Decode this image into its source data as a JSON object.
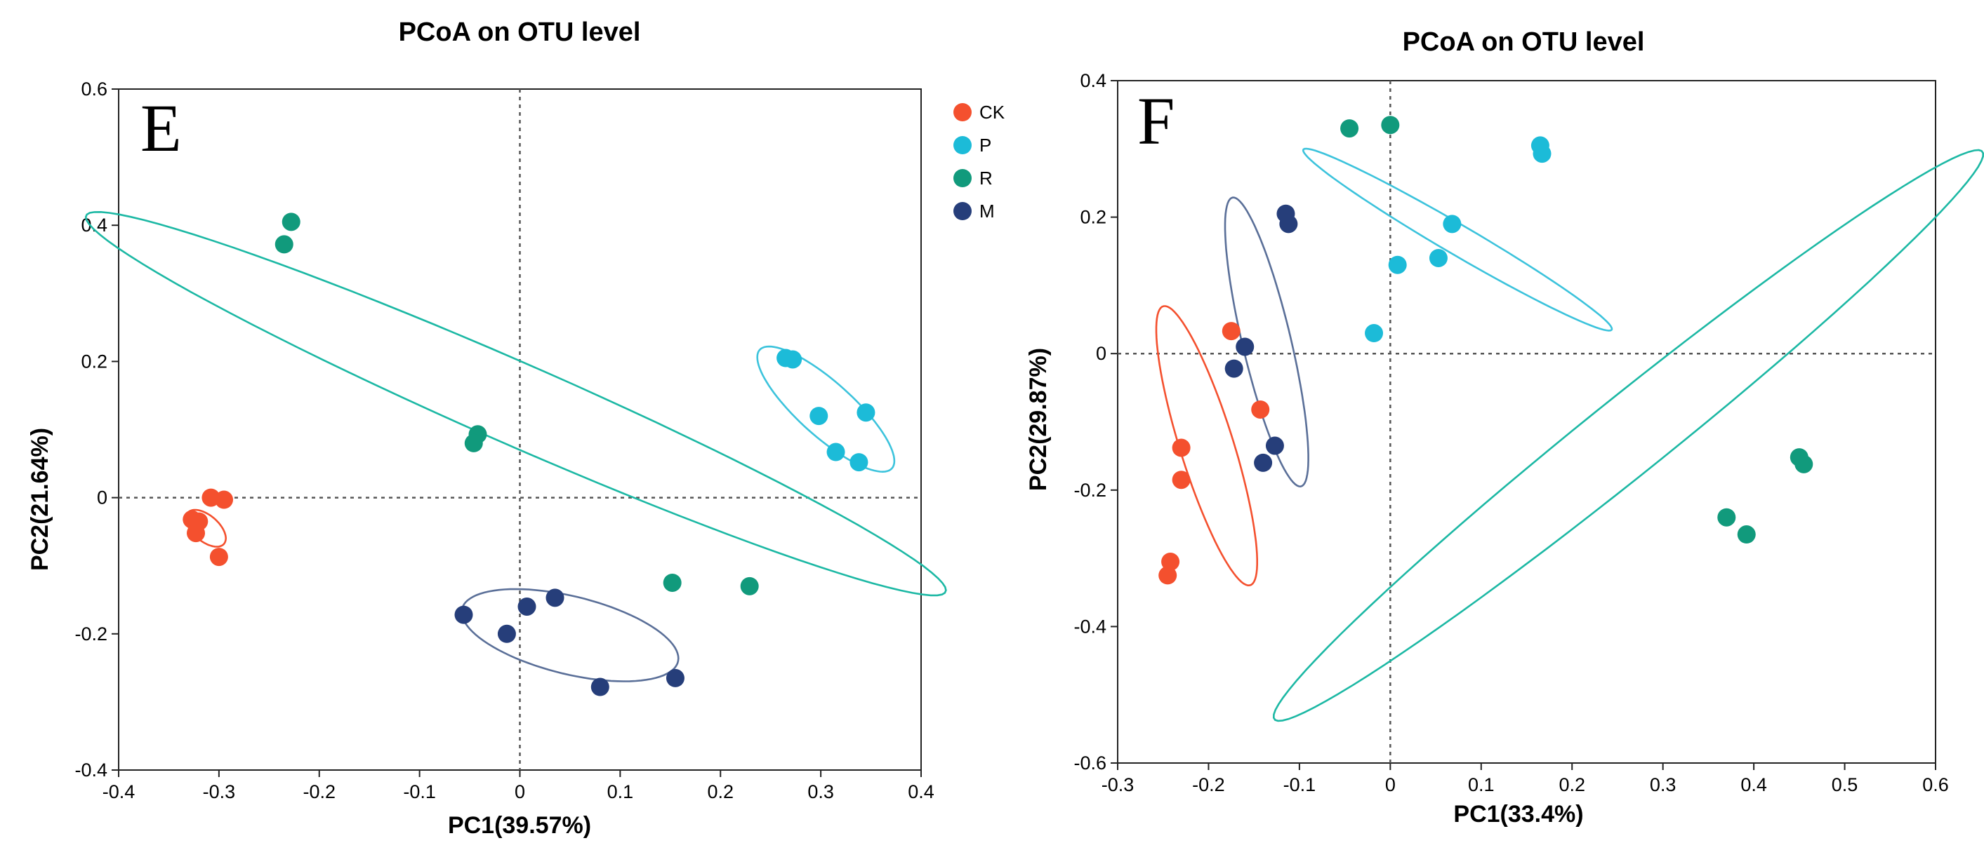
{
  "colors": {
    "CK": "#f4502e",
    "P": "#1cbbd8",
    "R": "#119a7c",
    "M": "#263e7a",
    "ellipse_CK": "#f4502e",
    "ellipse_P": "#3cc3dc",
    "ellipse_R": "#1cb8a4",
    "ellipse_M": "#5a6f98"
  },
  "legend": [
    {
      "group": "CK",
      "label": "CK"
    },
    {
      "group": "P",
      "label": "P"
    },
    {
      "group": "R",
      "label": "R"
    },
    {
      "group": "M",
      "label": "M"
    }
  ],
  "chart_data": [
    {
      "type": "scatter",
      "panel": "E",
      "title": "PCoA on OTU level",
      "xlabel": "PC1(39.57%)",
      "ylabel": "PC2(21.64%)",
      "xlim": [
        -0.4,
        0.4
      ],
      "ylim": [
        -0.4,
        0.6
      ],
      "xticks": [
        -0.4,
        -0.3,
        -0.2,
        -0.1,
        0,
        0.1,
        0.2,
        0.3,
        0.4
      ],
      "yticks": [
        -0.4,
        -0.2,
        0,
        0.2,
        0.4,
        0.6
      ],
      "xtick_labels": [
        "-0.4",
        "-0.3",
        "-0.2",
        "-0.1",
        "0",
        "0.1",
        "0.2",
        "0.3",
        "0.4"
      ],
      "ytick_labels": [
        "-0.4",
        "-0.2",
        "0",
        "0.2",
        "0.4",
        "0.6"
      ],
      "series": [
        {
          "name": "CK",
          "points": [
            [
              -0.308,
              0.0
            ],
            [
              -0.295,
              -0.003
            ],
            [
              -0.327,
              -0.032
            ],
            [
              -0.32,
              -0.035
            ],
            [
              -0.323,
              -0.052
            ],
            [
              -0.3,
              -0.087
            ]
          ]
        },
        {
          "name": "P",
          "points": [
            [
              0.265,
              0.205
            ],
            [
              0.272,
              0.203
            ],
            [
              0.298,
              0.12
            ],
            [
              0.345,
              0.125
            ],
            [
              0.315,
              0.067
            ],
            [
              0.338,
              0.052
            ]
          ]
        },
        {
          "name": "R",
          "points": [
            [
              -0.228,
              0.405
            ],
            [
              -0.235,
              0.372
            ],
            [
              -0.042,
              0.093
            ],
            [
              -0.046,
              0.08
            ],
            [
              0.152,
              -0.125
            ],
            [
              0.229,
              -0.13
            ]
          ]
        },
        {
          "name": "M",
          "points": [
            [
              -0.056,
              -0.172
            ],
            [
              0.035,
              -0.147
            ],
            [
              0.007,
              -0.16
            ],
            [
              -0.013,
              -0.2
            ],
            [
              0.08,
              -0.278
            ],
            [
              0.155,
              -0.265
            ]
          ]
        }
      ],
      "ellipses": [
        {
          "group": "CK",
          "center": [
            -0.313,
            -0.045
          ],
          "a": 0.03,
          "b": 0.015,
          "angle_deg": -60
        },
        {
          "group": "P",
          "center": [
            0.305,
            0.13
          ],
          "a": 0.11,
          "b": 0.032,
          "angle_deg": -55
        },
        {
          "group": "R",
          "center": [
            -0.004,
            0.138
          ],
          "a": 0.51,
          "b": 0.055,
          "angle_deg": -33
        },
        {
          "group": "M",
          "center": [
            0.05,
            -0.202
          ],
          "a": 0.115,
          "b": 0.055,
          "angle_deg": -23
        }
      ]
    },
    {
      "type": "scatter",
      "panel": "F",
      "title": "PCoA on OTU level",
      "xlabel": "PC1(33.4%)",
      "ylabel": "PC2(29.87%)",
      "xlim": [
        -0.3,
        0.6
      ],
      "ylim": [
        -0.6,
        0.4
      ],
      "xticks": [
        -0.3,
        -0.2,
        -0.1,
        0,
        0.1,
        0.2,
        0.3,
        0.4,
        0.5,
        0.6
      ],
      "yticks": [
        -0.6,
        -0.4,
        -0.2,
        0,
        0.2,
        0.4
      ],
      "xtick_labels": [
        "-0.3",
        "-0.2",
        "-0.1",
        "0",
        "0.1",
        "0.2",
        "0.3",
        "0.4",
        "0.5",
        "0.6"
      ],
      "ytick_labels": [
        "-0.6",
        "-0.4",
        "-0.2",
        "0",
        "0.2",
        "0.4"
      ],
      "series": [
        {
          "name": "CK",
          "points": [
            [
              -0.175,
              0.033
            ],
            [
              -0.143,
              -0.082
            ],
            [
              -0.23,
              -0.138
            ],
            [
              -0.23,
              -0.185
            ],
            [
              -0.242,
              -0.305
            ],
            [
              -0.245,
              -0.325
            ]
          ]
        },
        {
          "name": "P",
          "points": [
            [
              -0.018,
              0.03
            ],
            [
              0.008,
              0.13
            ],
            [
              0.053,
              0.14
            ],
            [
              0.068,
              0.19
            ],
            [
              0.165,
              0.305
            ],
            [
              0.167,
              0.293
            ]
          ]
        },
        {
          "name": "R",
          "points": [
            [
              -0.045,
              0.33
            ],
            [
              0.0,
              0.335
            ],
            [
              0.45,
              -0.152
            ],
            [
              0.455,
              -0.162
            ],
            [
              0.37,
              -0.24
            ],
            [
              0.392,
              -0.265
            ]
          ]
        },
        {
          "name": "M",
          "points": [
            [
              -0.115,
              0.205
            ],
            [
              -0.112,
              0.19
            ],
            [
              -0.16,
              0.01
            ],
            [
              -0.172,
              -0.022
            ],
            [
              -0.127,
              -0.135
            ],
            [
              -0.14,
              -0.16
            ]
          ]
        }
      ],
      "ellipses": [
        {
          "group": "CK",
          "center": [
            -0.202,
            -0.135
          ],
          "a": 0.21,
          "b": 0.03,
          "angle_deg": -77
        },
        {
          "group": "P",
          "center": [
            0.074,
            0.167
          ],
          "a": 0.215,
          "b": 0.02,
          "angle_deg": -38
        },
        {
          "group": "R",
          "center": [
            0.262,
            -0.12
          ],
          "a": 0.57,
          "b": 0.05,
          "angle_deg": 47
        },
        {
          "group": "M",
          "center": [
            -0.136,
            0.017
          ],
          "a": 0.215,
          "b": 0.027,
          "angle_deg": -80
        }
      ]
    }
  ]
}
